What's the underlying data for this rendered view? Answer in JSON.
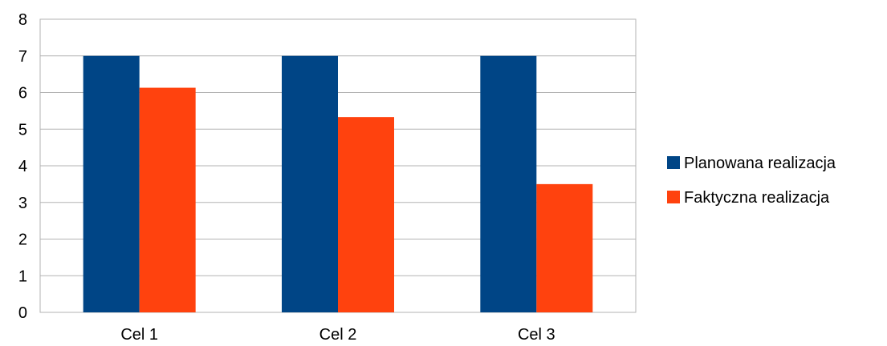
{
  "chart_data": {
    "type": "bar",
    "title": "",
    "xlabel": "",
    "ylabel": "",
    "categories": [
      "Cel 1",
      "Cel 2",
      "Cel 3"
    ],
    "series": [
      {
        "name": "Planowana realizacja",
        "color": "#004586",
        "values": [
          7,
          7,
          7
        ]
      },
      {
        "name": "Faktyczna realizacja",
        "color": "#FF420E",
        "values": [
          6.13,
          5.33,
          3.5
        ]
      }
    ],
    "ylim": [
      0,
      8
    ],
    "yticks": [
      "0",
      "1",
      "2",
      "3",
      "4",
      "5",
      "6",
      "7",
      "8"
    ],
    "grid": true,
    "legend_position": "right"
  }
}
